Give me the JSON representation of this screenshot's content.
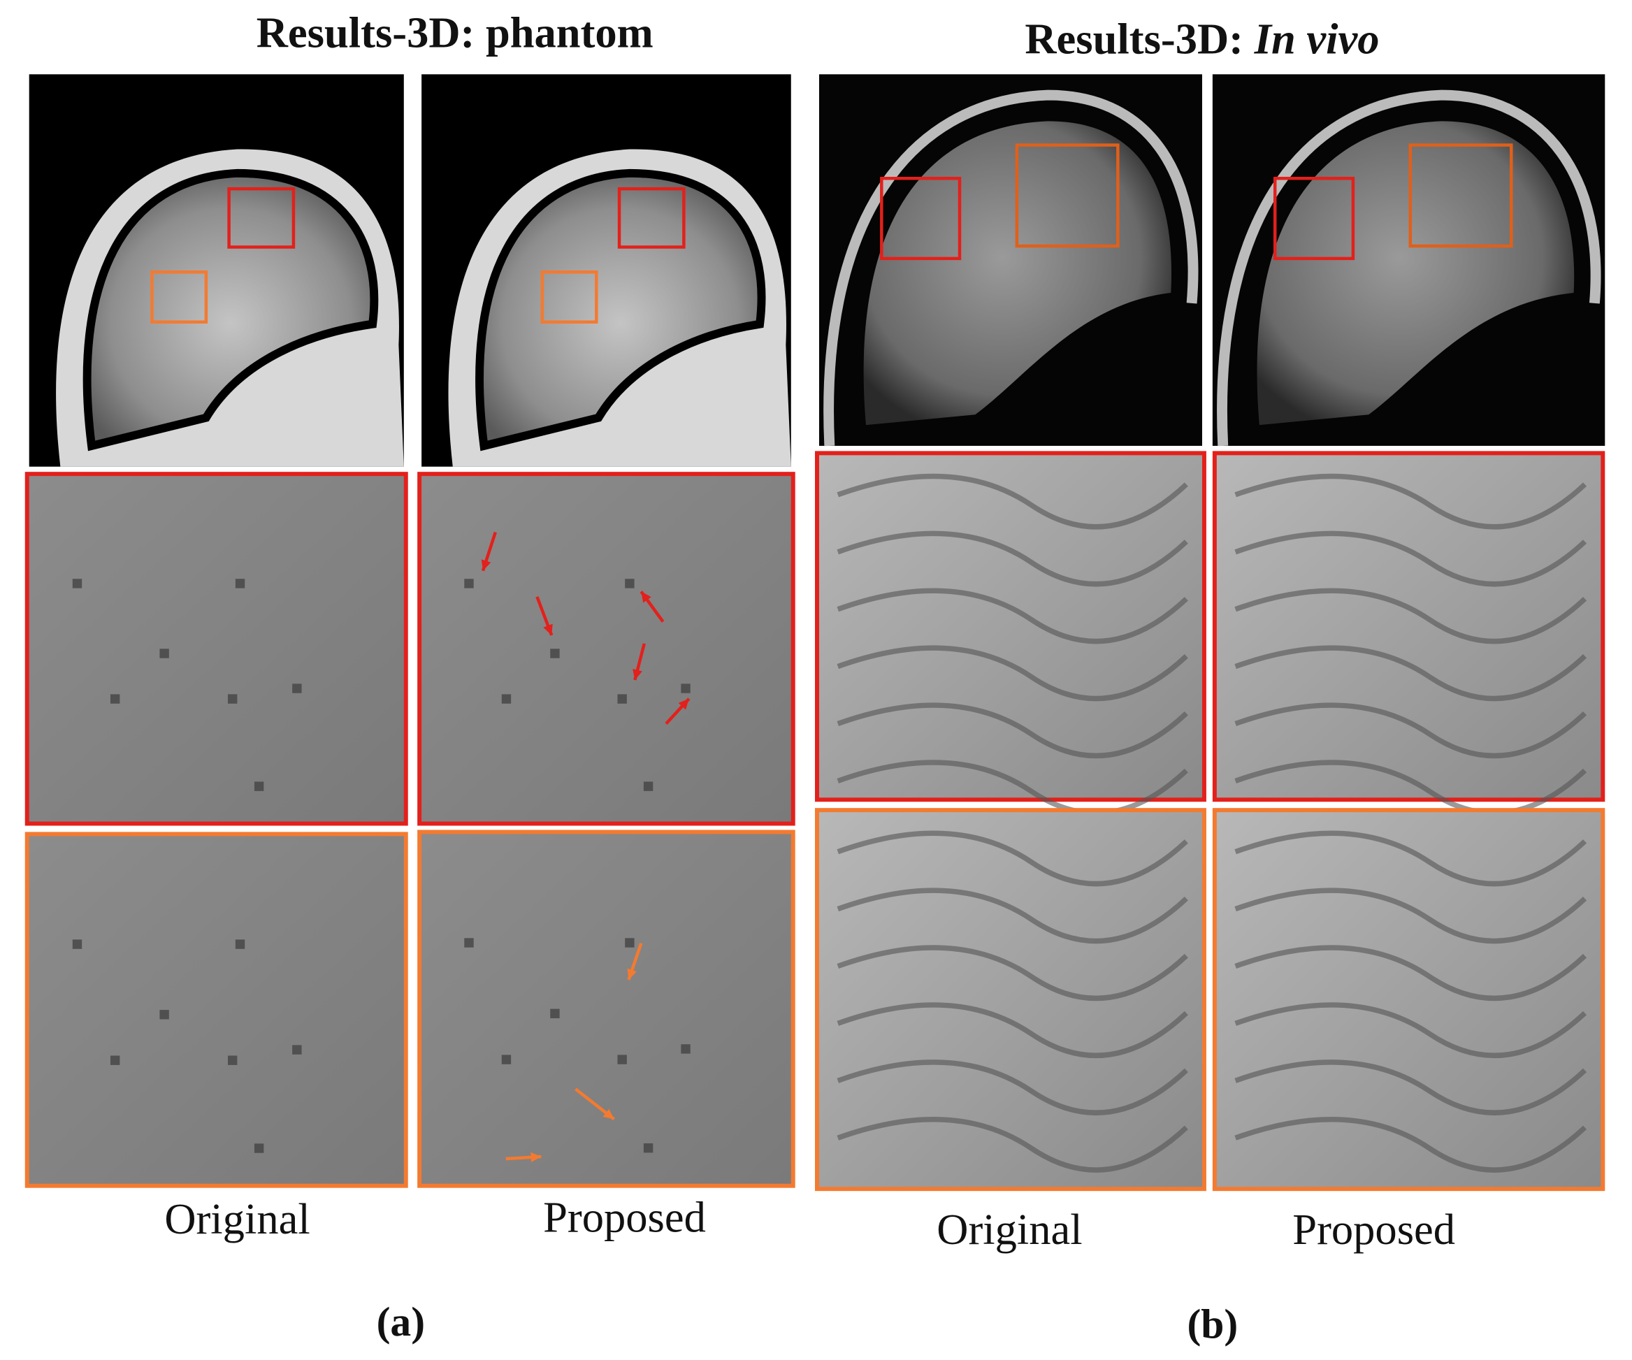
{
  "panels": [
    {
      "title": "Results-3D: phantom",
      "columns": [
        "Original",
        "Proposed"
      ],
      "label": "(a)"
    },
    {
      "title_prefix": "Results-3D:",
      "title_emphasis": "In vivo",
      "columns": [
        "Original",
        "Proposed"
      ],
      "label": "(b)"
    }
  ]
}
